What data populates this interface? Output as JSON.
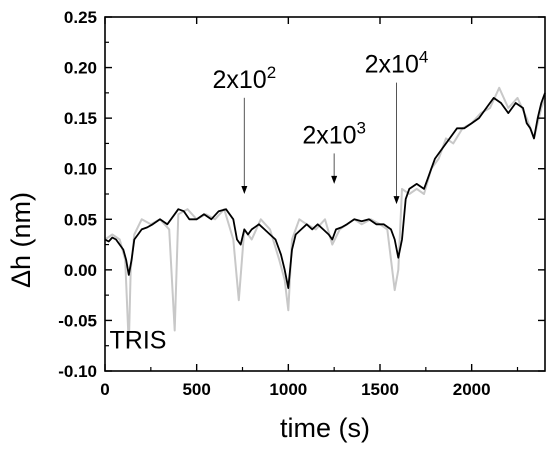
{
  "chart_data": {
    "type": "line",
    "title": "",
    "xlabel": "time (s)",
    "ylabel": "Δh (nm)",
    "xlim": [
      0,
      2400
    ],
    "ylim": [
      -0.1,
      0.25
    ],
    "grid": false,
    "legend": "none",
    "x_ticks": [
      "0",
      "500",
      "1000",
      "1500",
      "2000"
    ],
    "y_ticks": [
      "-0.10",
      "-0.05",
      "0.00",
      "0.05",
      "0.10",
      "0.15",
      "0.20",
      "0.25"
    ],
    "colors": {
      "raw": "#c8c8c8",
      "smoothed": "#000000"
    },
    "series": [
      {
        "key": "raw",
        "x": [
          0,
          40,
          80,
          110,
          130,
          140,
          160,
          200,
          250,
          300,
          350,
          380,
          400,
          450,
          500,
          550,
          600,
          650,
          700,
          730,
          760,
          800,
          850,
          900,
          950,
          980,
          1000,
          1020,
          1060,
          1100,
          1150,
          1200,
          1240,
          1280,
          1320,
          1360,
          1400,
          1450,
          1500,
          1540,
          1580,
          1600,
          1620,
          1660,
          1700,
          1740,
          1780,
          1820,
          1860,
          1900,
          1950,
          2000,
          2050,
          2100,
          2150,
          2200,
          2250,
          2300,
          2340,
          2380,
          2400
        ],
        "y": [
          0.03,
          0.035,
          0.03,
          0.01,
          -0.075,
          0.0,
          0.035,
          0.05,
          0.045,
          0.05,
          0.04,
          -0.06,
          0.055,
          0.06,
          0.05,
          0.055,
          0.05,
          0.06,
          0.03,
          -0.03,
          0.04,
          0.03,
          0.05,
          0.04,
          0.01,
          -0.01,
          -0.04,
          0.03,
          0.05,
          0.045,
          0.04,
          0.05,
          0.025,
          0.04,
          0.045,
          0.05,
          0.045,
          0.05,
          0.045,
          0.04,
          -0.02,
          0.0,
          0.08,
          0.075,
          0.08,
          0.075,
          0.1,
          0.11,
          0.13,
          0.125,
          0.14,
          0.145,
          0.155,
          0.16,
          0.18,
          0.16,
          0.17,
          0.15,
          0.13,
          0.16,
          0.17
        ]
      },
      {
        "key": "smoothed",
        "x": [
          0,
          20,
          40,
          60,
          80,
          100,
          115,
          130,
          145,
          160,
          180,
          200,
          230,
          260,
          300,
          340,
          380,
          400,
          430,
          460,
          500,
          540,
          580,
          620,
          660,
          700,
          720,
          740,
          760,
          780,
          800,
          840,
          870,
          900,
          930,
          960,
          980,
          1000,
          1020,
          1040,
          1070,
          1100,
          1130,
          1160,
          1190,
          1220,
          1240,
          1260,
          1290,
          1320,
          1360,
          1400,
          1440,
          1480,
          1520,
          1560,
          1580,
          1600,
          1620,
          1640,
          1660,
          1700,
          1740,
          1760,
          1780,
          1800,
          1840,
          1880,
          1920,
          1960,
          2000,
          2040,
          2080,
          2120,
          2160,
          2200,
          2240,
          2280,
          2300,
          2320,
          2340,
          2360,
          2380,
          2400
        ],
        "y": [
          0.03,
          0.028,
          0.032,
          0.03,
          0.025,
          0.02,
          0.01,
          -0.005,
          0.01,
          0.03,
          0.035,
          0.04,
          0.042,
          0.045,
          0.05,
          0.045,
          0.055,
          0.06,
          0.058,
          0.05,
          0.05,
          0.055,
          0.05,
          0.058,
          0.06,
          0.05,
          0.03,
          0.025,
          0.04,
          0.035,
          0.04,
          0.045,
          0.04,
          0.035,
          0.03,
          0.015,
          0.0,
          -0.018,
          0.02,
          0.035,
          0.04,
          0.045,
          0.04,
          0.045,
          0.04,
          0.035,
          0.03,
          0.04,
          0.042,
          0.045,
          0.05,
          0.048,
          0.05,
          0.045,
          0.045,
          0.04,
          0.03,
          0.012,
          0.03,
          0.07,
          0.08,
          0.085,
          0.08,
          0.09,
          0.1,
          0.11,
          0.12,
          0.13,
          0.14,
          0.14,
          0.145,
          0.15,
          0.16,
          0.17,
          0.165,
          0.155,
          0.165,
          0.16,
          0.145,
          0.14,
          0.13,
          0.15,
          0.165,
          0.175
        ]
      }
    ],
    "annotations": [
      {
        "base": "2x10",
        "exp": "2",
        "x": 760,
        "y_tip": 0.075,
        "y_text": 0.18
      },
      {
        "base": "2x10",
        "exp": "3",
        "x": 1250,
        "y_tip": 0.085,
        "y_text": 0.125
      },
      {
        "base": "2x10",
        "exp": "4",
        "x": 1590,
        "y_tip": 0.065,
        "y_text": 0.195
      }
    ],
    "text_labels": [
      {
        "text": "TRIS",
        "x": 180,
        "y": -0.068
      }
    ]
  }
}
